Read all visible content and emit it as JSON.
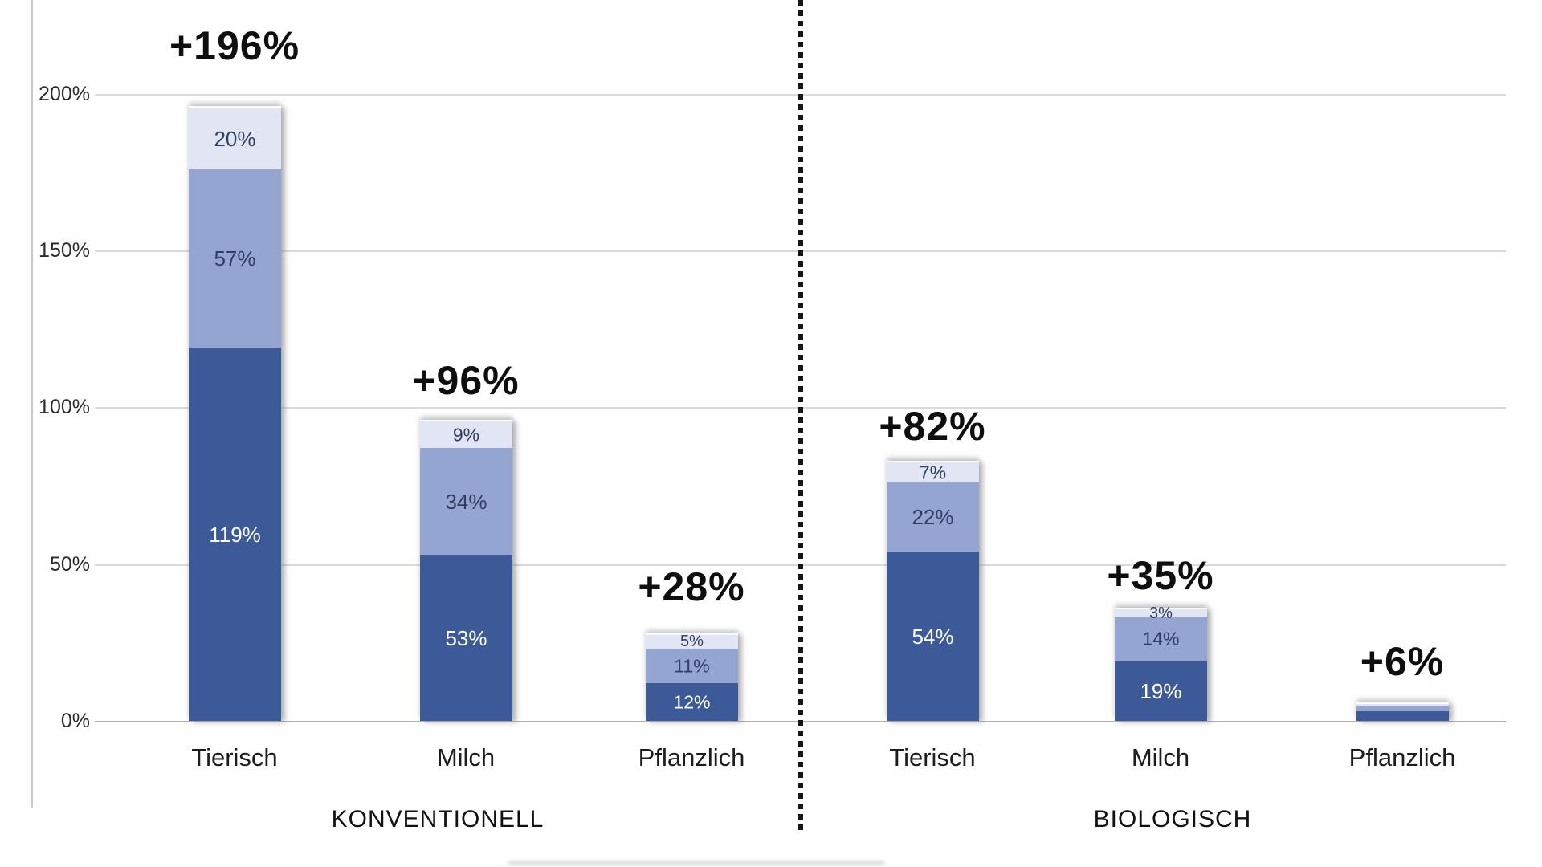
{
  "chart_data": {
    "type": "bar",
    "stacked": true,
    "title": "",
    "legend": "none",
    "grid": "horizontal",
    "y_axis": {
      "unit": "%",
      "range": [
        0,
        200
      ],
      "ticks": [
        {
          "label": "0%",
          "value": 0
        },
        {
          "label": "50%",
          "value": 50
        },
        {
          "label": "100%",
          "value": 100
        },
        {
          "label": "150%",
          "value": 150
        },
        {
          "label": "200%",
          "value": 200
        }
      ]
    },
    "colors": {
      "segment_dark": "#3c5a97",
      "segment_medium": "#94a5d1",
      "segment_light": "#e1e5f4",
      "label_on_dark": "#ffffff",
      "label_on_light": "#2f3e63",
      "big_label": "#0e0e0e",
      "axis_text": "#2a2a2a",
      "gridline": "#dadada",
      "baseline": "#b3b3b3",
      "separator": "#161616"
    },
    "separator": "dotted-vertical-line-between-groups",
    "groups": [
      {
        "label": "KONVENTIONELL",
        "bars": [
          {
            "category": "Tierisch",
            "total_label": "+196%",
            "total": 196,
            "segments": [
              {
                "tone": "dark",
                "value": 119,
                "label": "119%"
              },
              {
                "tone": "medium",
                "value": 57,
                "label": "57%"
              },
              {
                "tone": "light",
                "value": 20,
                "label": "20%"
              }
            ]
          },
          {
            "category": "Milch",
            "total_label": "+96%",
            "total": 96,
            "segments": [
              {
                "tone": "dark",
                "value": 53,
                "label": "53%"
              },
              {
                "tone": "medium",
                "value": 34,
                "label": "34%"
              },
              {
                "tone": "light",
                "value": 9,
                "label": "9%"
              }
            ]
          },
          {
            "category": "Pflanzlich",
            "total_label": "+28%",
            "total": 28,
            "segments": [
              {
                "tone": "dark",
                "value": 12,
                "label": "12%"
              },
              {
                "tone": "medium",
                "value": 11,
                "label": "11%"
              },
              {
                "tone": "light",
                "value": 5,
                "label": "5%"
              }
            ]
          }
        ]
      },
      {
        "label": "BIOLOGISCH",
        "bars": [
          {
            "category": "Tierisch",
            "total_label": "+82%",
            "total": 82,
            "segments": [
              {
                "tone": "dark",
                "value": 54,
                "label": "54%"
              },
              {
                "tone": "medium",
                "value": 22,
                "label": "22%"
              },
              {
                "tone": "light",
                "value": 7,
                "label": "7%"
              }
            ]
          },
          {
            "category": "Milch",
            "total_label": "+35%",
            "total": 35,
            "segments": [
              {
                "tone": "dark",
                "value": 19,
                "label": "19%"
              },
              {
                "tone": "medium",
                "value": 14,
                "label": "14%"
              },
              {
                "tone": "light",
                "value": 3,
                "label": "3%"
              }
            ]
          },
          {
            "category": "Pflanzlich",
            "total_label": "+6%",
            "total": 6,
            "segments": [
              {
                "tone": "dark",
                "value": 3,
                "label": ""
              },
              {
                "tone": "medium",
                "value": 2,
                "label": ""
              },
              {
                "tone": "light",
                "value": 1,
                "label": ""
              }
            ]
          }
        ]
      }
    ]
  }
}
